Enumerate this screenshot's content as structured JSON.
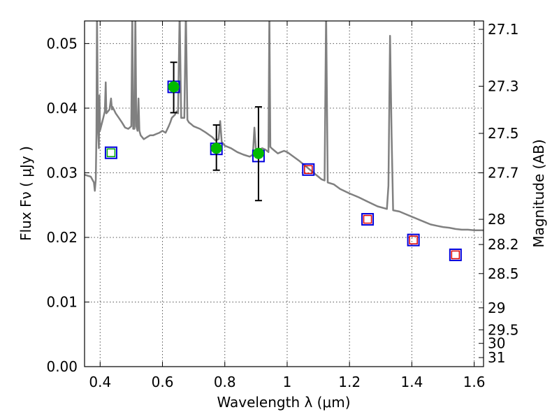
{
  "chart_data": {
    "type": "scatter",
    "title": "",
    "xlabel": "Wavelength  λ (μm)",
    "ylabel": "Flux  Fν  ( μJy )",
    "y2label": "Magnitude (AB)",
    "xlim": [
      0.35,
      1.63
    ],
    "ylim": [
      0.0,
      0.0535
    ],
    "x_ticks": [
      0.4,
      0.6,
      0.8,
      1.0,
      1.2,
      1.4,
      1.6
    ],
    "x_tick_labels": [
      "0.4",
      "0.6",
      "0.8",
      "1",
      "1.2",
      "1.4",
      "1.6"
    ],
    "y_ticks": [
      0.0,
      0.01,
      0.02,
      0.03,
      0.04,
      0.05
    ],
    "y_tick_labels": [
      "0.00",
      "0.01",
      "0.02",
      "0.03",
      "0.04",
      "0.05"
    ],
    "y2_ticks": [
      {
        "label": "27.1",
        "flux": 0.0522
      },
      {
        "label": "27.3",
        "flux": 0.0434
      },
      {
        "label": "27.5",
        "flux": 0.0361
      },
      {
        "label": "27.7",
        "flux": 0.03
      },
      {
        "label": "28",
        "flux": 0.0228
      },
      {
        "label": "28.2",
        "flux": 0.0189
      },
      {
        "label": "28.5",
        "flux": 0.0144
      },
      {
        "label": "29",
        "flux": 0.0091
      },
      {
        "label": "29.5",
        "flux": 0.0057
      },
      {
        "label": "30",
        "flux": 0.0036
      },
      {
        "label": "31",
        "flux": 0.0014
      }
    ],
    "grid": true,
    "series": [
      {
        "kind": "spectrum",
        "color": "#808080",
        "points": [
          [
            0.35,
            0.0297
          ],
          [
            0.37,
            0.0294
          ],
          [
            0.38,
            0.0285
          ],
          [
            0.383,
            0.0272
          ],
          [
            0.386,
            0.029
          ],
          [
            0.388,
            0.036
          ],
          [
            0.39,
            0.055
          ],
          [
            0.393,
            0.037
          ],
          [
            0.396,
            0.0338
          ],
          [
            0.398,
            0.042
          ],
          [
            0.4,
            0.0366
          ],
          [
            0.41,
            0.0385
          ],
          [
            0.415,
            0.0395
          ],
          [
            0.418,
            0.044
          ],
          [
            0.42,
            0.0392
          ],
          [
            0.43,
            0.0398
          ],
          [
            0.435,
            0.0415
          ],
          [
            0.438,
            0.0398
          ],
          [
            0.44,
            0.0402
          ],
          [
            0.45,
            0.0392
          ],
          [
            0.46,
            0.0385
          ],
          [
            0.47,
            0.0378
          ],
          [
            0.48,
            0.037
          ],
          [
            0.49,
            0.0368
          ],
          [
            0.5,
            0.0372
          ],
          [
            0.503,
            0.055
          ],
          [
            0.506,
            0.0368
          ],
          [
            0.51,
            0.0368
          ],
          [
            0.513,
            0.055
          ],
          [
            0.516,
            0.0372
          ],
          [
            0.52,
            0.0365
          ],
          [
            0.523,
            0.0415
          ],
          [
            0.526,
            0.0365
          ],
          [
            0.53,
            0.0358
          ],
          [
            0.54,
            0.0352
          ],
          [
            0.55,
            0.0355
          ],
          [
            0.56,
            0.0358
          ],
          [
            0.57,
            0.0358
          ],
          [
            0.58,
            0.036
          ],
          [
            0.59,
            0.0362
          ],
          [
            0.6,
            0.0365
          ],
          [
            0.61,
            0.0362
          ],
          [
            0.62,
            0.0372
          ],
          [
            0.625,
            0.0378
          ],
          [
            0.63,
            0.0385
          ],
          [
            0.64,
            0.039
          ],
          [
            0.645,
            0.0395
          ],
          [
            0.65,
            0.0392
          ],
          [
            0.655,
            0.055
          ],
          [
            0.66,
            0.0385
          ],
          [
            0.67,
            0.0385
          ],
          [
            0.675,
            0.055
          ],
          [
            0.68,
            0.0382
          ],
          [
            0.685,
            0.0378
          ],
          [
            0.69,
            0.0376
          ],
          [
            0.7,
            0.0372
          ],
          [
            0.72,
            0.0368
          ],
          [
            0.74,
            0.0362
          ],
          [
            0.76,
            0.0355
          ],
          [
            0.77,
            0.035
          ],
          [
            0.78,
            0.0352
          ],
          [
            0.785,
            0.038
          ],
          [
            0.79,
            0.0348
          ],
          [
            0.8,
            0.0342
          ],
          [
            0.82,
            0.0338
          ],
          [
            0.84,
            0.0332
          ],
          [
            0.86,
            0.0328
          ],
          [
            0.88,
            0.0325
          ],
          [
            0.89,
            0.0328
          ],
          [
            0.895,
            0.037
          ],
          [
            0.9,
            0.0332
          ],
          [
            0.91,
            0.0336
          ],
          [
            0.92,
            0.0338
          ],
          [
            0.93,
            0.0336
          ],
          [
            0.94,
            0.0332
          ],
          [
            0.943,
            0.055
          ],
          [
            0.946,
            0.034
          ],
          [
            0.95,
            0.0338
          ],
          [
            0.96,
            0.0334
          ],
          [
            0.97,
            0.033
          ],
          [
            0.98,
            0.0332
          ],
          [
            0.99,
            0.0334
          ],
          [
            1.0,
            0.0332
          ],
          [
            1.02,
            0.0325
          ],
          [
            1.04,
            0.0318
          ],
          [
            1.06,
            0.031
          ],
          [
            1.07,
            0.0306
          ],
          [
            1.08,
            0.0302
          ],
          [
            1.09,
            0.0298
          ],
          [
            1.1,
            0.0294
          ],
          [
            1.11,
            0.029
          ],
          [
            1.12,
            0.0288
          ],
          [
            1.125,
            0.055
          ],
          [
            1.13,
            0.0285
          ],
          [
            1.15,
            0.0282
          ],
          [
            1.17,
            0.0275
          ],
          [
            1.2,
            0.0268
          ],
          [
            1.23,
            0.0262
          ],
          [
            1.26,
            0.0255
          ],
          [
            1.29,
            0.0248
          ],
          [
            1.32,
            0.0244
          ],
          [
            1.325,
            0.028
          ],
          [
            1.33,
            0.0512
          ],
          [
            1.335,
            0.036
          ],
          [
            1.34,
            0.0242
          ],
          [
            1.36,
            0.024
          ],
          [
            1.38,
            0.0236
          ],
          [
            1.4,
            0.0232
          ],
          [
            1.42,
            0.0228
          ],
          [
            1.44,
            0.0224
          ],
          [
            1.46,
            0.022
          ],
          [
            1.48,
            0.0218
          ],
          [
            1.5,
            0.0216
          ],
          [
            1.52,
            0.0215
          ],
          [
            1.54,
            0.0213
          ],
          [
            1.56,
            0.0212
          ],
          [
            1.58,
            0.0212
          ],
          [
            1.6,
            0.0211
          ],
          [
            1.63,
            0.0211
          ]
        ]
      },
      {
        "kind": "model-squares",
        "points": [
          {
            "x": 0.435,
            "y": 0.0331,
            "inner": "#00aa00"
          },
          {
            "x": 0.636,
            "y": 0.0433,
            "inner": null
          },
          {
            "x": 0.773,
            "y": 0.0337,
            "inner": null
          },
          {
            "x": 0.908,
            "y": 0.0326,
            "inner": null
          },
          {
            "x": 1.068,
            "y": 0.0305,
            "inner": "#dd0000"
          },
          {
            "x": 1.258,
            "y": 0.0228,
            "inner": "#dd0000"
          },
          {
            "x": 1.405,
            "y": 0.0196,
            "inner": "#dd0000"
          },
          {
            "x": 1.54,
            "y": 0.0173,
            "inner": "#dd0000"
          }
        ]
      },
      {
        "kind": "observations",
        "color": "#00bb00",
        "points": [
          {
            "x": 0.636,
            "y": 0.0433,
            "ylo": 0.0393,
            "yhi": 0.0471
          },
          {
            "x": 0.773,
            "y": 0.0338,
            "ylo": 0.0304,
            "yhi": 0.0374
          },
          {
            "x": 0.908,
            "y": 0.033,
            "ylo": 0.0257,
            "yhi": 0.0402
          }
        ]
      }
    ]
  }
}
